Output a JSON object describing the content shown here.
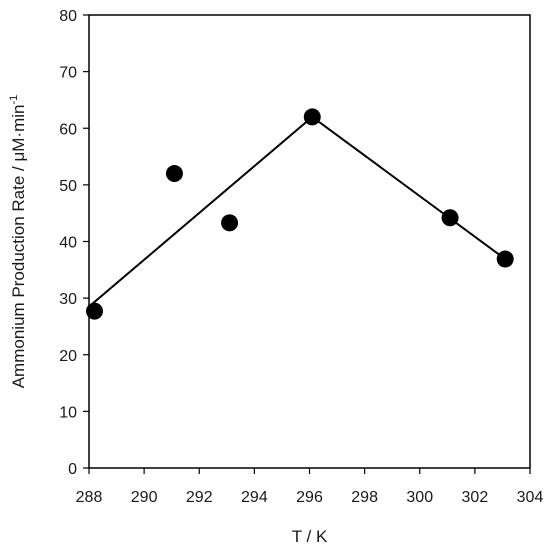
{
  "chart_data": {
    "type": "scatter",
    "xlabel": "T / K",
    "ylabel": "Ammonium Production Rate / μM·min",
    "ylabel_superscript": "-1",
    "xlim": [
      288,
      304
    ],
    "ylim": [
      0,
      80
    ],
    "x_ticks": [
      288,
      290,
      292,
      294,
      296,
      298,
      300,
      302,
      304
    ],
    "y_ticks": [
      0,
      10,
      20,
      30,
      40,
      50,
      60,
      70,
      80
    ],
    "grid": false,
    "series": [
      {
        "kind": "markers",
        "points": [
          {
            "x": 288.2,
            "y": 27.7
          },
          {
            "x": 291.1,
            "y": 52.0
          },
          {
            "x": 293.1,
            "y": 43.3
          },
          {
            "x": 296.1,
            "y": 62.0
          },
          {
            "x": 301.1,
            "y": 44.2
          },
          {
            "x": 303.1,
            "y": 36.9
          }
        ]
      },
      {
        "kind": "line",
        "points": [
          {
            "x": 288.0,
            "y": 28.5
          },
          {
            "x": 296.1,
            "y": 62.0
          },
          {
            "x": 303.1,
            "y": 36.9
          }
        ]
      }
    ],
    "colors": {
      "marker": "#000000",
      "line": "#000000",
      "axis": "#000000"
    }
  }
}
